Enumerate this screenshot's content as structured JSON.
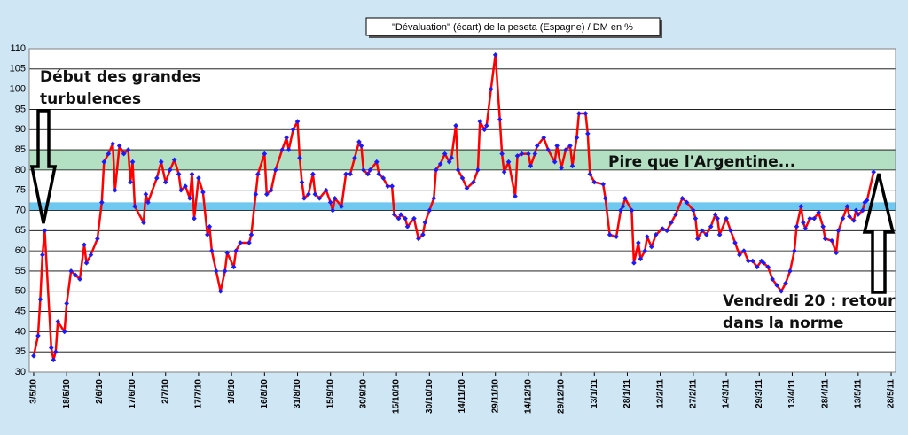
{
  "chart_data": {
    "type": "line",
    "title": "\"Dévaluation\"  (écart)  de la peseta  (Espagne)  / DM en %",
    "x": [
      "3/5/10",
      "5/5/10",
      "6/5/10",
      "7/5/10",
      "8/5/10",
      "11/5/10",
      "12/5/10",
      "13/5/10",
      "14/5/10",
      "17/5/10",
      "18/5/10",
      "20/5/10",
      "22/5/10",
      "24/5/10",
      "26/5/10",
      "27/5/10",
      "29/5/10",
      "1/6/10",
      "3/6/10",
      "4/6/10",
      "6/6/10",
      "8/6/10",
      "9/6/10",
      "11/6/10",
      "13/6/10",
      "15/6/10",
      "16/6/10",
      "17/6/10",
      "18/6/10",
      "22/6/10",
      "23/6/10",
      "24/6/10",
      "28/6/10",
      "30/6/10",
      "2/7/10",
      "4/7/10",
      "6/7/10",
      "8/7/10",
      "9/7/10",
      "11/7/10",
      "13/7/10",
      "14/7/10",
      "15/7/10",
      "17/7/10",
      "19/7/10",
      "21/7/10",
      "22/7/10",
      "23/7/10",
      "25/7/10",
      "27/7/10",
      "29/7/10",
      "30/7/10",
      "2/8/10",
      "3/8/10",
      "5/8/10",
      "9/8/10",
      "10/8/10",
      "12/8/10",
      "13/8/10",
      "16/8/10",
      "17/8/10",
      "19/8/10",
      "21/8/10",
      "24/8/10",
      "26/8/10",
      "27/8/10",
      "29/8/10",
      "31/8/10",
      "1/9/10",
      "2/9/10",
      "3/9/10",
      "5/9/10",
      "7/9/10",
      "8/9/10",
      "10/9/10",
      "13/9/10",
      "15/9/10",
      "16/9/10",
      "17/9/10",
      "20/9/10",
      "22/9/10",
      "24/9/10",
      "26/9/10",
      "28/9/10",
      "29/9/10",
      "30/9/10",
      "2/10/10",
      "3/10/10",
      "6/10/10",
      "7/10/10",
      "9/10/10",
      "11/10/10",
      "13/10/10",
      "14/10/10",
      "16/10/10",
      "17/10/10",
      "19/10/10",
      "20/10/10",
      "23/10/10",
      "25/10/10",
      "27/10/10",
      "28/10/10",
      "30/10/10",
      "1/11/10",
      "2/11/10",
      "4/11/10",
      "6/11/10",
      "8/11/10",
      "9/11/10",
      "11/11/10",
      "12/11/10",
      "14/11/10",
      "16/11/10",
      "19/11/10",
      "21/11/10",
      "22/11/10",
      "24/11/10",
      "25/11/10",
      "27/11/10",
      "29/11/10",
      "1/12/10",
      "2/12/10",
      "3/12/10",
      "5/12/10",
      "8/12/10",
      "9/12/10",
      "11/12/10",
      "14/12/10",
      "15/12/10",
      "17/12/10",
      "18/12/10",
      "21/12/10",
      "23/12/10",
      "26/12/10",
      "27/12/10",
      "29/12/10",
      "31/12/10",
      "2/1/11",
      "3/1/11",
      "5/1/11",
      "6/1/11",
      "9/1/11",
      "10/1/11",
      "11/1/11",
      "13/1/11",
      "17/1/11",
      "18/1/11",
      "20/1/11",
      "23/1/11",
      "25/1/11",
      "26/1/11",
      "27/1/11",
      "30/1/11",
      "31/1/11",
      "2/2/11",
      "3/2/11",
      "5/2/11",
      "6/2/11",
      "8/2/11",
      "10/2/11",
      "13/2/11",
      "15/2/11",
      "17/2/11",
      "19/2/11",
      "22/2/11",
      "24/2/11",
      "27/2/11",
      "28/2/11",
      "1/3/11",
      "3/3/11",
      "5/3/11",
      "7/3/11",
      "9/3/11",
      "10/3/11",
      "11/3/11",
      "14/3/11",
      "16/3/11",
      "18/3/11",
      "20/3/11",
      "22/3/11",
      "24/3/11",
      "26/3/11",
      "28/3/11",
      "30/3/11",
      "31/3/11",
      "2/4/11",
      "4/4/11",
      "6/4/11",
      "8/4/11",
      "10/4/11",
      "12/4/11",
      "14/4/11",
      "15/4/11",
      "17/4/11",
      "18/4/11",
      "19/4/11",
      "21/4/11",
      "23/4/11",
      "25/4/11",
      "27/4/11",
      "28/4/11",
      "1/5/11",
      "3/5/11",
      "4/5/11",
      "6/5/11",
      "8/5/11",
      "9/5/11",
      "11/5/11",
      "12/5/11",
      "13/5/11",
      "15/5/11",
      "16/5/11",
      "17/5/11",
      "20/5/11"
    ],
    "values": [
      34,
      39,
      48,
      59,
      65,
      36,
      33,
      35,
      42.5,
      40,
      47,
      55,
      54,
      53,
      61.5,
      57,
      59,
      63,
      72,
      82,
      84,
      86.5,
      75,
      86,
      84,
      85,
      77,
      82,
      71,
      67,
      74,
      72,
      78,
      82,
      77,
      80,
      82.5,
      79,
      75,
      76,
      73,
      79,
      68,
      78,
      74.5,
      64,
      66,
      60,
      55,
      50,
      55,
      59.5,
      56,
      60,
      62,
      62,
      64,
      74,
      79,
      84,
      74,
      75,
      80,
      85,
      88,
      85,
      90,
      92,
      83,
      77,
      73,
      74,
      79,
      74,
      73,
      75,
      72,
      70,
      73,
      71,
      79,
      79,
      83,
      87,
      86,
      80,
      79,
      80,
      82,
      79,
      78,
      76,
      76,
      69,
      68,
      69,
      68,
      66,
      68,
      63,
      64,
      67,
      70,
      73,
      80,
      81.5,
      84,
      82,
      83,
      91,
      80,
      78,
      75.5,
      77,
      80,
      92,
      90,
      91,
      100,
      108.5,
      92.5,
      84,
      79.5,
      82,
      73.5,
      83.5,
      84,
      84,
      81,
      84,
      86,
      88,
      85,
      82,
      86,
      80.5,
      85,
      86,
      81,
      88,
      94,
      94,
      89,
      79,
      77,
      76.5,
      73,
      64,
      63.5,
      70,
      71,
      73,
      70,
      57,
      62,
      58,
      60,
      63.5,
      61,
      64,
      65.5,
      65,
      67,
      69,
      73,
      72,
      70,
      68,
      63,
      65,
      64,
      66,
      69,
      68,
      64,
      68,
      65,
      62,
      59,
      60,
      57.5,
      57.5,
      56,
      57.5,
      57,
      56,
      53,
      51.5,
      50,
      52,
      55,
      60,
      66,
      71,
      67,
      65.5,
      68,
      68,
      69.5,
      66,
      63,
      62.5,
      59.5,
      65,
      68,
      71,
      68.5,
      67.5,
      70,
      69,
      70,
      72,
      72.5,
      79.5
    ],
    "color": "#ff0000",
    "marker_color": "#1a1aff",
    "xlim": [
      "1/5/10",
      "30/5/11"
    ],
    "xticks": [
      "3/5/10",
      "18/5/10",
      "2/6/10",
      "17/6/10",
      "2/7/10",
      "17/7/10",
      "1/8/10",
      "16/8/10",
      "31/8/10",
      "15/9/10",
      "30/9/10",
      "15/10/10",
      "30/10/10",
      "14/11/10",
      "29/11/10",
      "14/12/10",
      "29/12/10",
      "13/1/11",
      "28/1/11",
      "12/2/11",
      "27/2/11",
      "14/3/11",
      "29/3/11",
      "13/4/11",
      "28/4/11",
      "13/5/11",
      "28/5/11"
    ],
    "ylim": [
      30,
      110
    ],
    "yticks": [
      30,
      35,
      40,
      45,
      50,
      55,
      60,
      65,
      70,
      75,
      80,
      85,
      90,
      95,
      100,
      105,
      110
    ],
    "grid": true,
    "bands": [
      {
        "from": 80,
        "to": 85,
        "color": "#b3e0c2"
      },
      {
        "from": 70,
        "to": 72,
        "color": "#6fc8ef"
      }
    ],
    "annotations": [
      {
        "lines": [
          "Début des grandes",
          "turbulences"
        ]
      },
      {
        "lines": [
          "Pire que l'Argentine..."
        ]
      },
      {
        "lines": [
          "Vendredi 20 : retour",
          "dans la norme"
        ]
      }
    ]
  }
}
